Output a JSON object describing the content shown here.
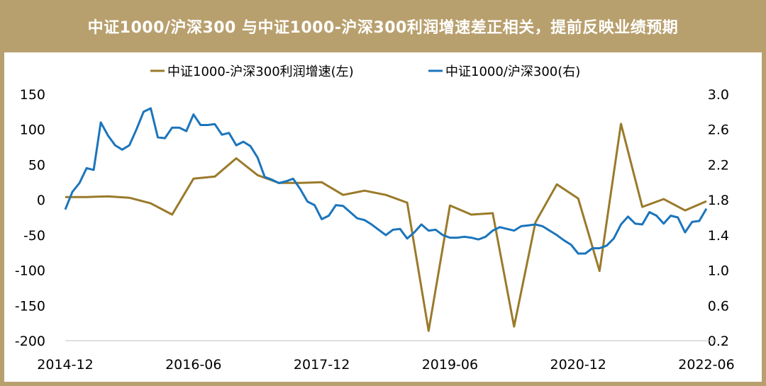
{
  "title": "中证1000/沪深300 与中证1000-沪深300利润增速差正相关，提前反映业绩预期",
  "colors": {
    "header_bg": "#b8a06e",
    "profit_series": "#9a7a2a",
    "ratio_series": "#1b75bc"
  },
  "chart_data": {
    "type": "line",
    "title": "中证1000/沪深300 与中证1000-沪深300利润增速差正相关，提前反映业绩预期",
    "x_tick_labels": [
      "2014-12",
      "2016-06",
      "2017-12",
      "2019-06",
      "2020-12",
      "2022-06"
    ],
    "x_range": [
      2014.917,
      2022.417
    ],
    "y_left": {
      "range": [
        -200,
        150
      ],
      "ticks": [
        "150",
        "100",
        "50",
        "0",
        "-50",
        "-100",
        "-150",
        "-200"
      ]
    },
    "y_right": {
      "range": [
        0.2,
        3.0
      ],
      "ticks": [
        "3.0",
        "2.6",
        "2.2",
        "1.8",
        "1.4",
        "1.0",
        "0.6",
        "0.2"
      ]
    },
    "series": [
      {
        "name": "中证1000-沪深300利润增速(左)",
        "axis": "left",
        "points": [
          [
            2014.917,
            4
          ],
          [
            2015.167,
            4
          ],
          [
            2015.417,
            5
          ],
          [
            2015.667,
            3
          ],
          [
            2015.917,
            -5
          ],
          [
            2016.167,
            -21
          ],
          [
            2016.417,
            30
          ],
          [
            2016.667,
            33
          ],
          [
            2016.917,
            59
          ],
          [
            2017.167,
            35
          ],
          [
            2017.417,
            24
          ],
          [
            2017.667,
            24
          ],
          [
            2017.917,
            25
          ],
          [
            2018.167,
            7
          ],
          [
            2018.417,
            13
          ],
          [
            2018.667,
            7
          ],
          [
            2018.917,
            -4
          ],
          [
            2019.167,
            -186
          ],
          [
            2019.417,
            -8
          ],
          [
            2019.667,
            -21
          ],
          [
            2019.917,
            -19
          ],
          [
            2020.167,
            -180
          ],
          [
            2020.417,
            -32
          ],
          [
            2020.667,
            22
          ],
          [
            2020.917,
            2
          ],
          [
            2021.167,
            -101
          ],
          [
            2021.417,
            108
          ],
          [
            2021.667,
            -10
          ],
          [
            2021.917,
            1
          ],
          [
            2022.167,
            -15
          ],
          [
            2022.417,
            -2
          ]
        ]
      },
      {
        "name": "中证1000/沪深300(右)",
        "axis": "right",
        "points": [
          [
            2014.917,
            1.69
          ],
          [
            2015.0,
            1.89
          ],
          [
            2015.083,
            1.99
          ],
          [
            2015.167,
            2.16
          ],
          [
            2015.25,
            2.14
          ],
          [
            2015.333,
            2.68
          ],
          [
            2015.417,
            2.53
          ],
          [
            2015.5,
            2.42
          ],
          [
            2015.583,
            2.37
          ],
          [
            2015.667,
            2.42
          ],
          [
            2015.75,
            2.6
          ],
          [
            2015.833,
            2.8
          ],
          [
            2015.917,
            2.84
          ],
          [
            2016.0,
            2.51
          ],
          [
            2016.083,
            2.5
          ],
          [
            2016.167,
            2.62
          ],
          [
            2016.25,
            2.62
          ],
          [
            2016.333,
            2.58
          ],
          [
            2016.417,
            2.77
          ],
          [
            2016.5,
            2.65
          ],
          [
            2016.583,
            2.65
          ],
          [
            2016.667,
            2.66
          ],
          [
            2016.75,
            2.54
          ],
          [
            2016.833,
            2.56
          ],
          [
            2016.917,
            2.42
          ],
          [
            2017.0,
            2.46
          ],
          [
            2017.083,
            2.41
          ],
          [
            2017.167,
            2.28
          ],
          [
            2017.25,
            2.06
          ],
          [
            2017.333,
            2.03
          ],
          [
            2017.417,
            1.99
          ],
          [
            2017.5,
            2.01
          ],
          [
            2017.583,
            2.04
          ],
          [
            2017.667,
            1.92
          ],
          [
            2017.75,
            1.78
          ],
          [
            2017.833,
            1.74
          ],
          [
            2017.917,
            1.58
          ],
          [
            2018.0,
            1.62
          ],
          [
            2018.083,
            1.74
          ],
          [
            2018.167,
            1.73
          ],
          [
            2018.25,
            1.66
          ],
          [
            2018.333,
            1.59
          ],
          [
            2018.417,
            1.57
          ],
          [
            2018.5,
            1.52
          ],
          [
            2018.583,
            1.46
          ],
          [
            2018.667,
            1.4
          ],
          [
            2018.75,
            1.46
          ],
          [
            2018.833,
            1.47
          ],
          [
            2018.917,
            1.36
          ],
          [
            2019.0,
            1.43
          ],
          [
            2019.083,
            1.52
          ],
          [
            2019.167,
            1.45
          ],
          [
            2019.25,
            1.46
          ],
          [
            2019.333,
            1.4
          ],
          [
            2019.417,
            1.37
          ],
          [
            2019.5,
            1.37
          ],
          [
            2019.583,
            1.38
          ],
          [
            2019.667,
            1.37
          ],
          [
            2019.75,
            1.35
          ],
          [
            2019.833,
            1.38
          ],
          [
            2019.917,
            1.45
          ],
          [
            2020.0,
            1.49
          ],
          [
            2020.083,
            1.47
          ],
          [
            2020.167,
            1.45
          ],
          [
            2020.25,
            1.5
          ],
          [
            2020.333,
            1.51
          ],
          [
            2020.417,
            1.52
          ],
          [
            2020.5,
            1.5
          ],
          [
            2020.583,
            1.45
          ],
          [
            2020.667,
            1.4
          ],
          [
            2020.75,
            1.34
          ],
          [
            2020.833,
            1.29
          ],
          [
            2020.917,
            1.19
          ],
          [
            2021.0,
            1.19
          ],
          [
            2021.083,
            1.25
          ],
          [
            2021.167,
            1.25
          ],
          [
            2021.25,
            1.28
          ],
          [
            2021.333,
            1.36
          ],
          [
            2021.417,
            1.52
          ],
          [
            2021.5,
            1.61
          ],
          [
            2021.583,
            1.53
          ],
          [
            2021.667,
            1.52
          ],
          [
            2021.75,
            1.66
          ],
          [
            2021.833,
            1.62
          ],
          [
            2021.917,
            1.53
          ],
          [
            2022.0,
            1.62
          ],
          [
            2022.083,
            1.6
          ],
          [
            2022.167,
            1.43
          ],
          [
            2022.25,
            1.55
          ],
          [
            2022.333,
            1.56
          ],
          [
            2022.417,
            1.7
          ]
        ]
      }
    ],
    "legend": "top-center",
    "grid": false
  }
}
